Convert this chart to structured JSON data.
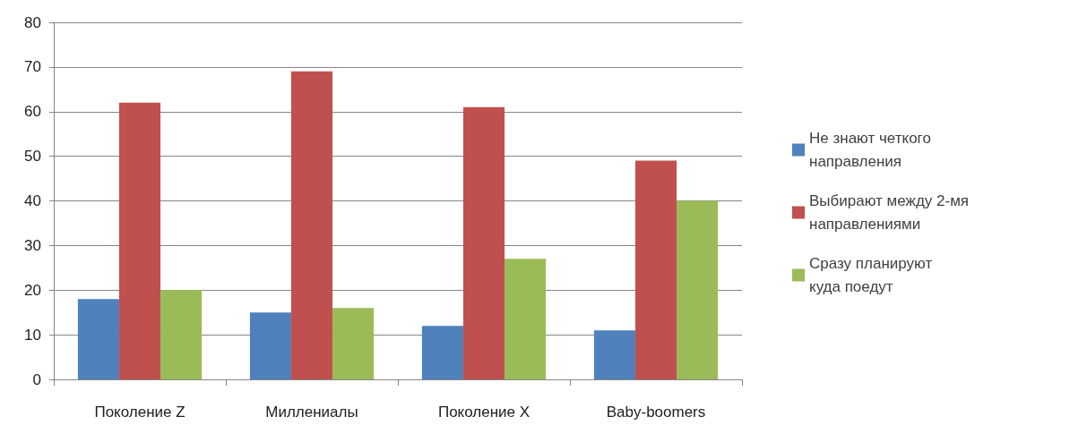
{
  "chart_data": {
    "type": "bar",
    "categories": [
      "Поколение Z",
      "Миллениалы",
      "Поколение X",
      "Baby-boomers"
    ],
    "series": [
      {
        "name": "Не знают четкого направления",
        "color": "#4f81bd",
        "values": [
          18,
          15,
          12,
          11
        ]
      },
      {
        "name": "Выбирают между 2-мя направлениями",
        "color": "#c0504d",
        "values": [
          62,
          69,
          61,
          49
        ]
      },
      {
        "name": "Сразу планируют куда поедут",
        "color": "#9bbb59",
        "values": [
          20,
          16,
          27,
          40
        ]
      }
    ],
    "ylim": [
      0,
      80
    ],
    "yticks": [
      0,
      10,
      20,
      30,
      40,
      50,
      60,
      70,
      80
    ],
    "grid": "y",
    "legend": "right"
  }
}
